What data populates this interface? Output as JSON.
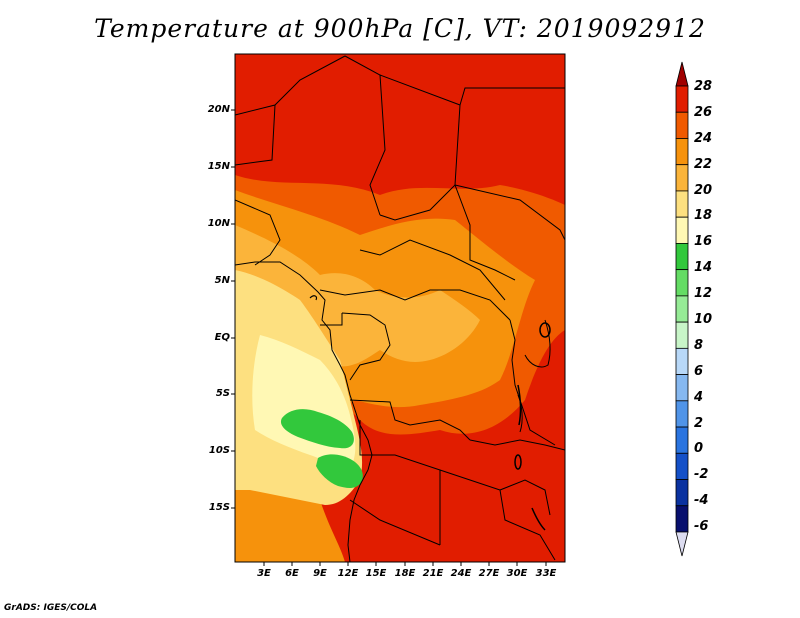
{
  "title": "Temperature at 900hPa [C], VT: 2019092912",
  "map": {
    "y_ticks": [
      "20N",
      "15N",
      "10N",
      "5N",
      "EQ",
      "5S",
      "10S",
      "15S"
    ],
    "x_ticks": [
      "3E",
      "6E",
      "9E",
      "12E",
      "15E",
      "18E",
      "21E",
      "24E",
      "27E",
      "30E",
      "33E"
    ]
  },
  "colorbar": {
    "labels": [
      "28",
      "26",
      "24",
      "22",
      "20",
      "18",
      "16",
      "14",
      "12",
      "10",
      "8",
      "6",
      "4",
      "2",
      "0",
      "-2",
      "-4",
      "-6"
    ],
    "colors": [
      "#a00000",
      "#e11d00",
      "#f05a00",
      "#f6920c",
      "#fbb43a",
      "#fde080",
      "#fff8b4",
      "#32c83c",
      "#64dc64",
      "#96eb96",
      "#c8f5c8",
      "#b8d8f8",
      "#86b8f0",
      "#5094e8",
      "#2a74e0",
      "#1450c8",
      "#0a32a0",
      "#08106e",
      "#dcdcf0"
    ]
  },
  "credit": "GrADS: IGES/COLA"
}
